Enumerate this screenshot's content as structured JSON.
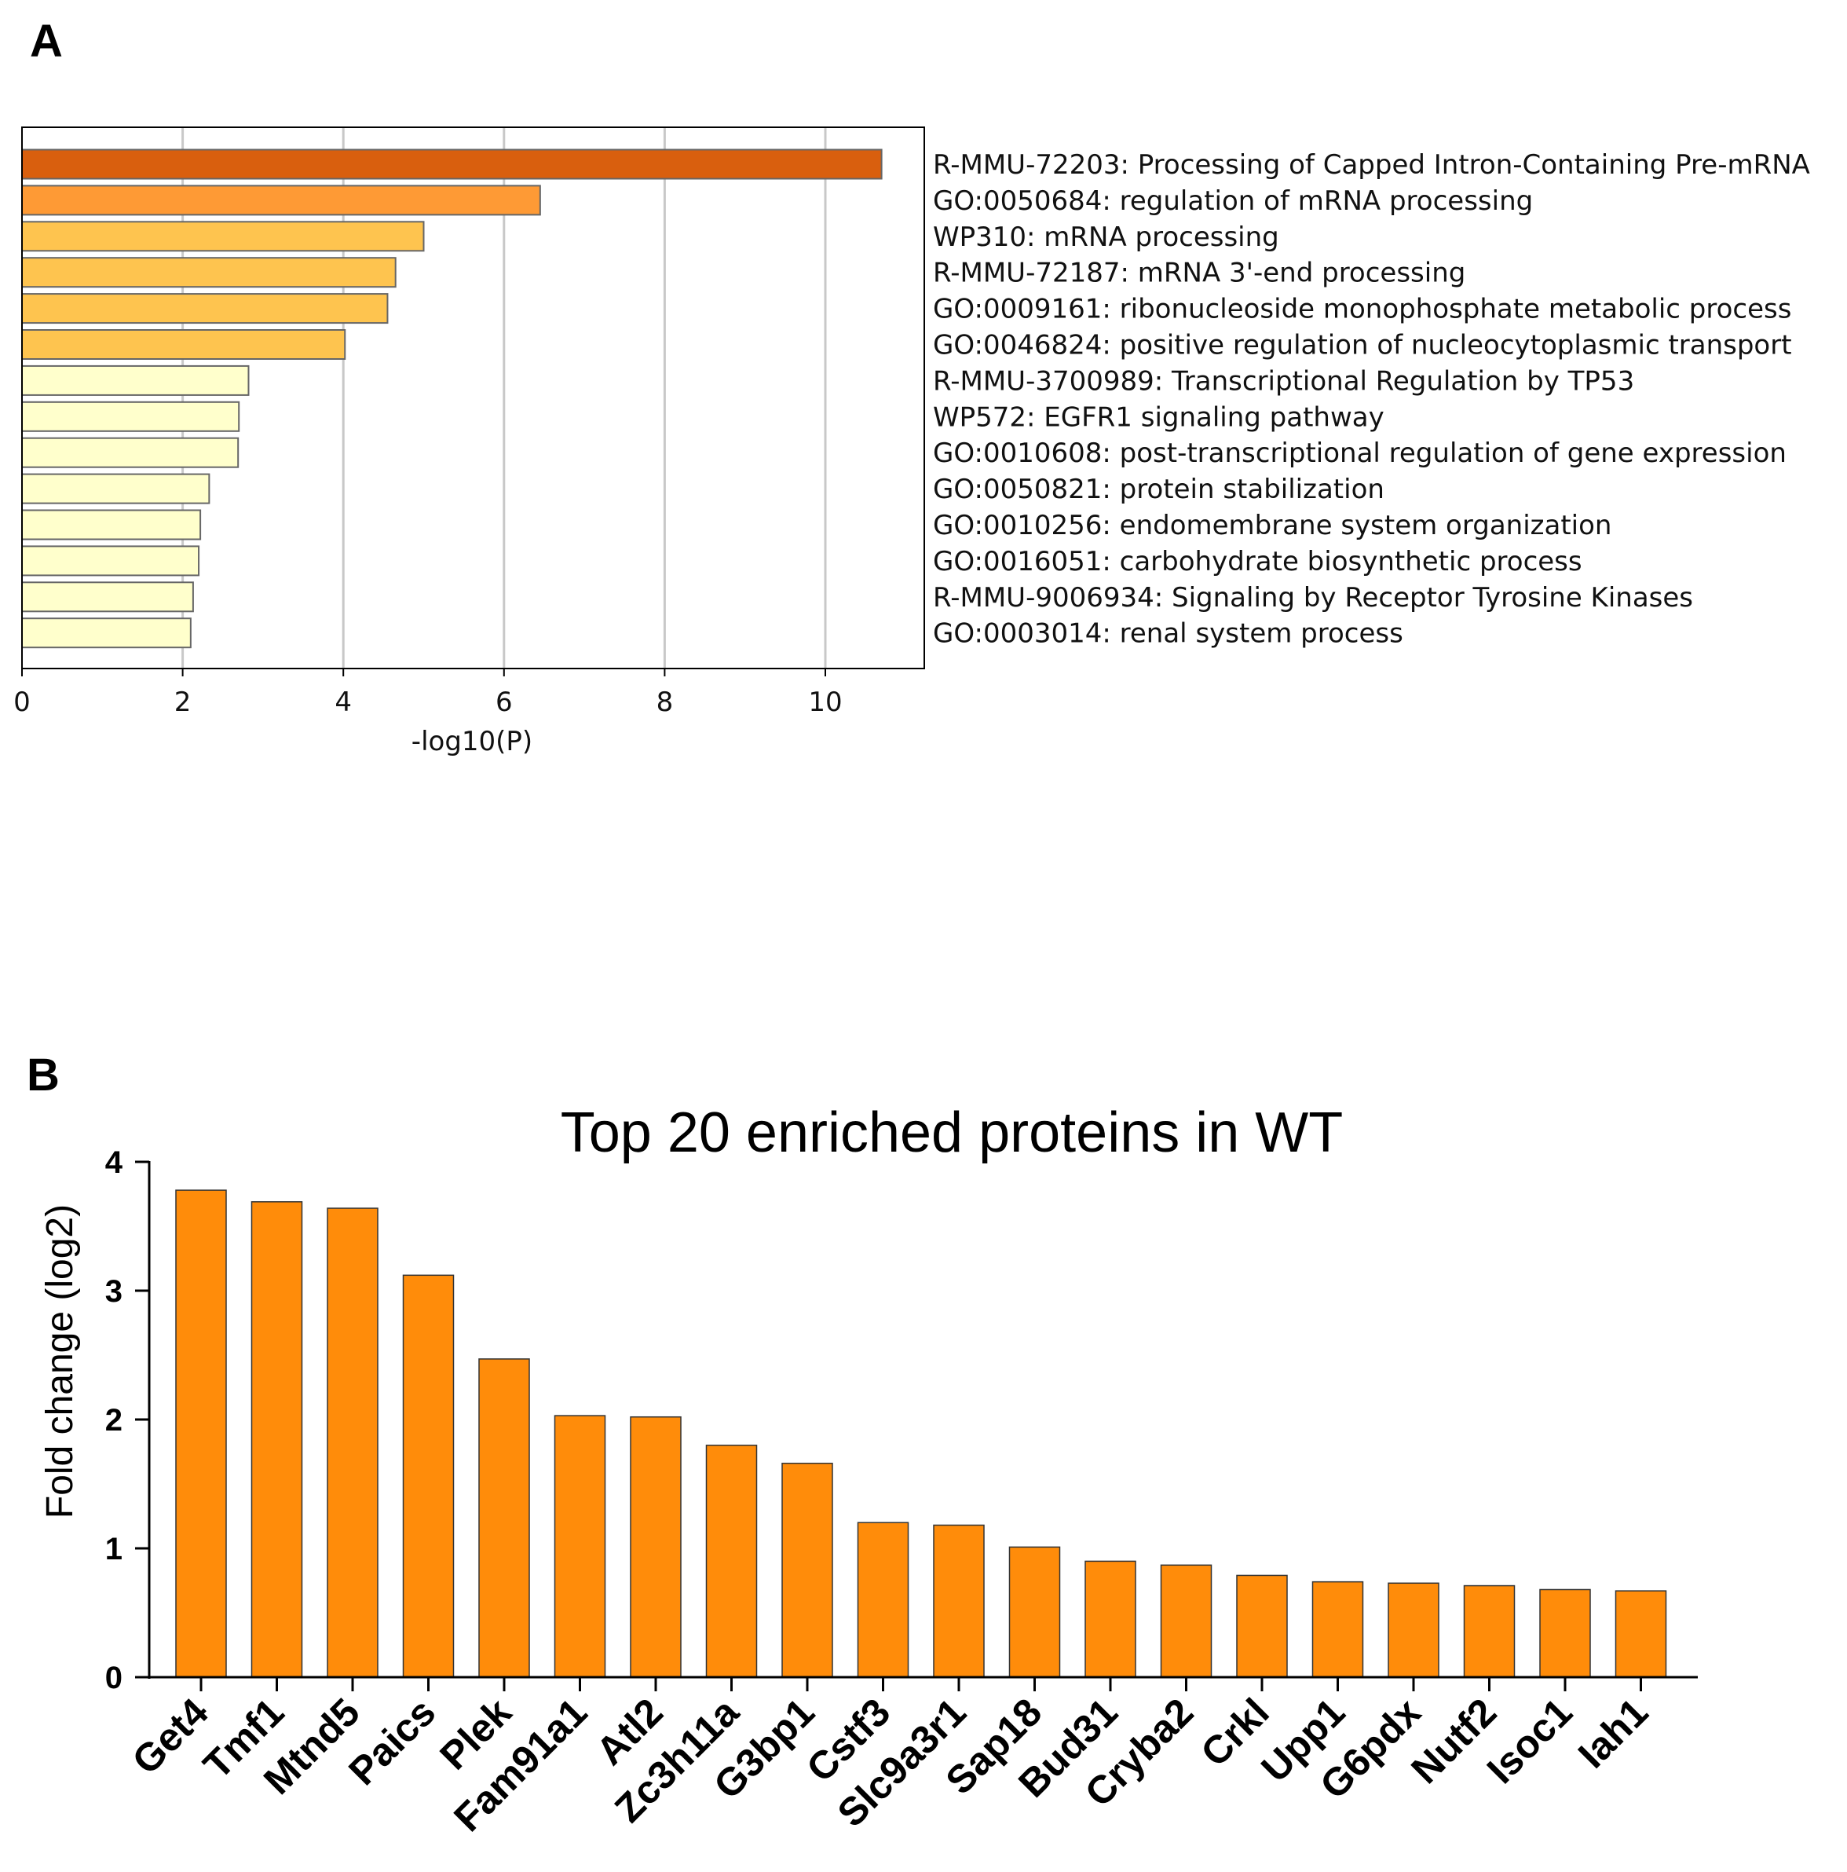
{
  "panels": {
    "a_letter": "A",
    "b_letter": "B"
  },
  "chart_data": [
    {
      "type": "bar",
      "orientation": "horizontal",
      "panel": "A",
      "title": "",
      "xlabel": "-log10(P)",
      "ylabel": "",
      "xlim": [
        0,
        11.25
      ],
      "xticks": [
        0,
        2,
        4,
        6,
        8,
        10
      ],
      "grid": true,
      "categories": [
        "R-MMU-72203: Processing of Capped Intron-Containing Pre-mRNA",
        "GO:0050684: regulation of mRNA processing",
        "WP310: mRNA processing",
        "R-MMU-72187: mRNA 3'-end processing",
        "GO:0009161: ribonucleoside monophosphate metabolic process",
        "GO:0046824: positive regulation of nucleocytoplasmic transport",
        "R-MMU-3700989: Transcriptional Regulation by TP53",
        "WP572: EGFR1 signaling pathway",
        "GO:0010608: post-transcriptional regulation of gene expression",
        "GO:0050821: protein stabilization",
        "GO:0010256: endomembrane system organization",
        "GO:0016051: carbohydrate biosynthetic process",
        "R-MMU-9006934: Signaling by Receptor Tyrosine Kinases",
        "GO:0003014: renal system process"
      ],
      "values": [
        10.7,
        6.45,
        5.0,
        4.65,
        4.55,
        4.02,
        2.82,
        2.7,
        2.69,
        2.33,
        2.22,
        2.2,
        2.13,
        2.1
      ],
      "colors": [
        "#d95f0e",
        "#fe9a35",
        "#fec44f",
        "#fec44f",
        "#fec44f",
        "#fec44f",
        "#ffffcc",
        "#ffffcc",
        "#ffffcc",
        "#ffffcc",
        "#ffffcc",
        "#ffffcc",
        "#ffffcc",
        "#ffffcc"
      ],
      "edge_color": "#666666",
      "grid_color": "#c8c8c8"
    },
    {
      "type": "bar",
      "panel": "B",
      "title": "Top 20 enriched proteins in WT",
      "xlabel": "",
      "ylabel": "Fold change (log2)",
      "ylim": [
        0,
        4
      ],
      "yticks": [
        0,
        1,
        2,
        3,
        4
      ],
      "categories": [
        "Get4",
        "Tmf1",
        "Mtnd5",
        "Paics",
        "Plek",
        "Fam91a1",
        "Atl2",
        "Zc3h11a",
        "G3bp1",
        "Cstf3",
        "Slc9a3r1",
        "Sap18",
        "Bud31",
        "Cryba2",
        "Crkl",
        "Upp1",
        "G6pdx",
        "Nutf2",
        "Isoc1",
        "Iah1"
      ],
      "values": [
        3.78,
        3.69,
        3.64,
        3.12,
        2.47,
        2.03,
        2.02,
        1.8,
        1.66,
        1.2,
        1.18,
        1.01,
        0.9,
        0.87,
        0.79,
        0.74,
        0.73,
        0.71,
        0.68,
        0.67
      ],
      "color": "#ff8c0a",
      "edge_color": "#333333"
    }
  ]
}
